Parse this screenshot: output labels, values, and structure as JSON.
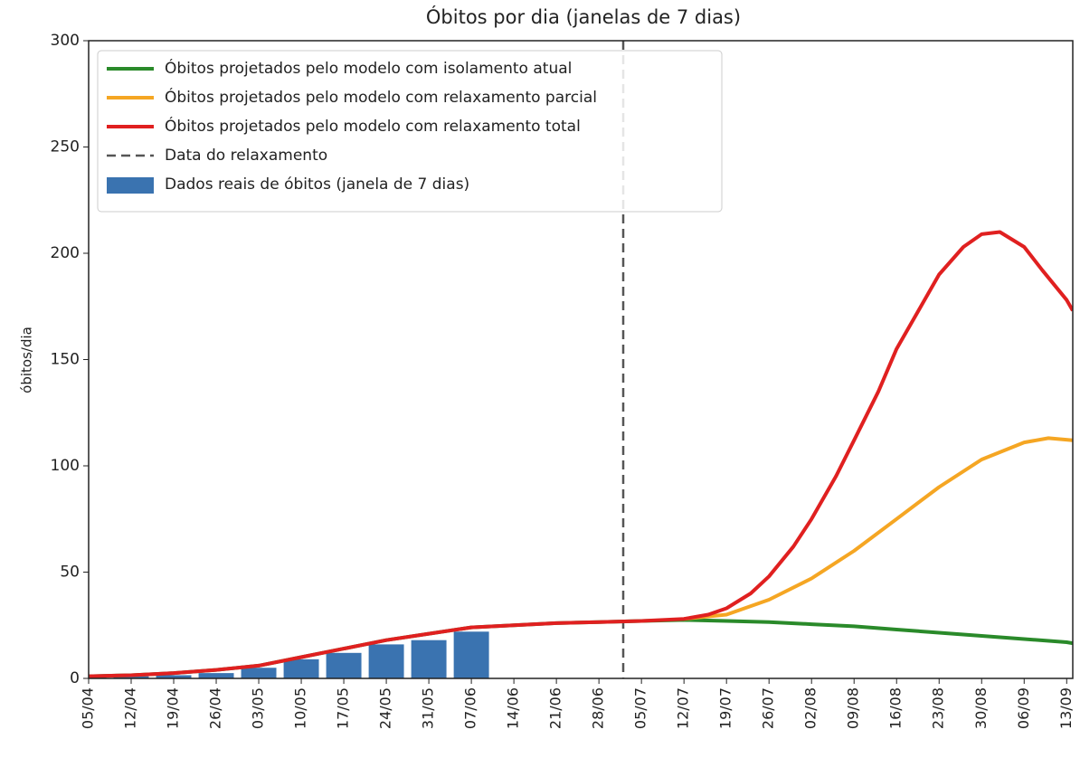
{
  "chart_data": {
    "type": "line",
    "title": "Óbitos por dia (janelas de 7 dias)",
    "y_label": "óbitos/dia",
    "xlim": [
      "05/04",
      "14/09"
    ],
    "ylim": [
      0,
      300
    ],
    "yticks": [
      0,
      50,
      100,
      150,
      200,
      250,
      300
    ],
    "xticks": [
      "05/04",
      "12/04",
      "19/04",
      "26/04",
      "03/05",
      "10/05",
      "17/05",
      "24/05",
      "31/05",
      "07/06",
      "14/06",
      "21/06",
      "28/06",
      "05/07",
      "12/07",
      "19/07",
      "26/07",
      "02/08",
      "09/08",
      "16/08",
      "23/08",
      "30/08",
      "06/09",
      "13/09"
    ],
    "legend": "upper left",
    "series": [
      {
        "name": "Óbitos projetados pelo modelo com isolamento atual",
        "type": "line",
        "color": "#2a8a2a",
        "x": [
          "05/04",
          "12/04",
          "19/04",
          "26/04",
          "03/05",
          "10/05",
          "17/05",
          "24/05",
          "31/05",
          "07/06",
          "14/06",
          "21/06",
          "28/06",
          "05/07",
          "12/07",
          "19/07",
          "26/07",
          "02/08",
          "09/08",
          "16/08",
          "23/08",
          "30/08",
          "06/09",
          "13/09",
          "14/09"
        ],
        "values": [
          1,
          1.5,
          2.5,
          4,
          6,
          10,
          14,
          18,
          21,
          24,
          25,
          26,
          26.5,
          27,
          27.5,
          27,
          26.5,
          25.5,
          24.5,
          23,
          21.5,
          20,
          18.5,
          17,
          16.5
        ]
      },
      {
        "name": "Óbitos projetados pelo modelo com relaxamento parcial",
        "type": "line",
        "color": "#f5a623",
        "x": [
          "12/07",
          "19/07",
          "26/07",
          "02/08",
          "09/08",
          "16/08",
          "23/08",
          "30/08",
          "06/09",
          "10/09",
          "14/09"
        ],
        "values": [
          28,
          30,
          37,
          47,
          60,
          75,
          90,
          103,
          111,
          113,
          112
        ]
      },
      {
        "name": "Óbitos projetados pelo modelo com relaxamento total",
        "type": "line",
        "color": "#e02020",
        "x": [
          "05/04",
          "12/04",
          "19/04",
          "26/04",
          "03/05",
          "10/05",
          "17/05",
          "24/05",
          "31/05",
          "07/06",
          "14/06",
          "21/06",
          "28/06",
          "05/07",
          "12/07",
          "16/07",
          "19/07",
          "23/07",
          "26/07",
          "30/07",
          "02/08",
          "06/08",
          "09/08",
          "13/08",
          "16/08",
          "20/08",
          "23/08",
          "27/08",
          "30/08",
          "02/09",
          "06/09",
          "09/09",
          "13/09",
          "14/09"
        ],
        "values": [
          1,
          1.5,
          2.5,
          4,
          6,
          10,
          14,
          18,
          21,
          24,
          25,
          26,
          26.5,
          27,
          28,
          30,
          33,
          40,
          48,
          62,
          75,
          95,
          112,
          135,
          155,
          175,
          190,
          203,
          209,
          210,
          203,
          192,
          178,
          173
        ]
      },
      {
        "name": "Data do relaxamento",
        "type": "vline",
        "color": "#555555",
        "x": [
          "02/07"
        ]
      },
      {
        "name": "Dados reais de óbitos (janela de 7 dias)",
        "type": "bar",
        "color": "#3a73b0",
        "x": [
          "05/04",
          "12/04",
          "19/04",
          "26/04",
          "03/05",
          "10/05",
          "17/05",
          "24/05",
          "31/05",
          "07/06"
        ],
        "values": [
          0.5,
          1,
          1.5,
          2.5,
          5,
          9,
          12,
          16,
          18,
          22
        ]
      }
    ]
  }
}
